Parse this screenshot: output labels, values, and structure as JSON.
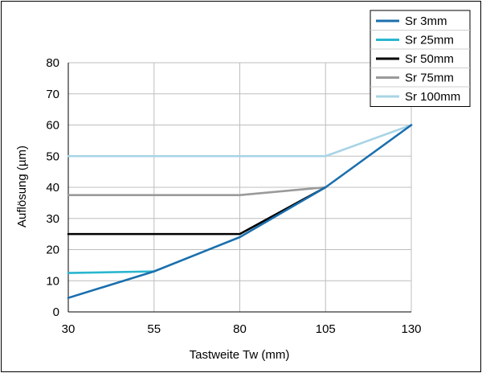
{
  "chart_data": {
    "type": "line",
    "xlabel": "Tastweite Tw (mm)",
    "ylabel": "Auflösung (µm)",
    "x": [
      30,
      55,
      80,
      105,
      130
    ],
    "xlim": [
      30,
      130
    ],
    "ylim": [
      0,
      80
    ],
    "x_ticks": [
      "30",
      "55",
      "80",
      "105",
      "130"
    ],
    "y_ticks": [
      "0",
      "10",
      "20",
      "30",
      "40",
      "50",
      "60",
      "70",
      "80"
    ],
    "grid": true,
    "legend_position": "top-right",
    "series": [
      {
        "name": "Sr 3mm",
        "color": "#1a6fad",
        "x": [
          30,
          55,
          80,
          105,
          130
        ],
        "y": [
          4.5,
          13,
          24,
          40,
          60
        ]
      },
      {
        "name": "Sr 25mm",
        "color": "#29b6cf",
        "x": [
          30,
          55
        ],
        "y": [
          12.5,
          13
        ]
      },
      {
        "name": "Sr 50mm",
        "color": "#000000",
        "x": [
          30,
          80,
          105
        ],
        "y": [
          25,
          25,
          40
        ]
      },
      {
        "name": "Sr 75mm",
        "color": "#9a9a9a",
        "x": [
          30,
          80,
          105
        ],
        "y": [
          37.5,
          37.5,
          40
        ]
      },
      {
        "name": "Sr 100mm",
        "color": "#a8d4e6",
        "x": [
          30,
          105,
          130
        ],
        "y": [
          50,
          50,
          60
        ]
      }
    ]
  }
}
